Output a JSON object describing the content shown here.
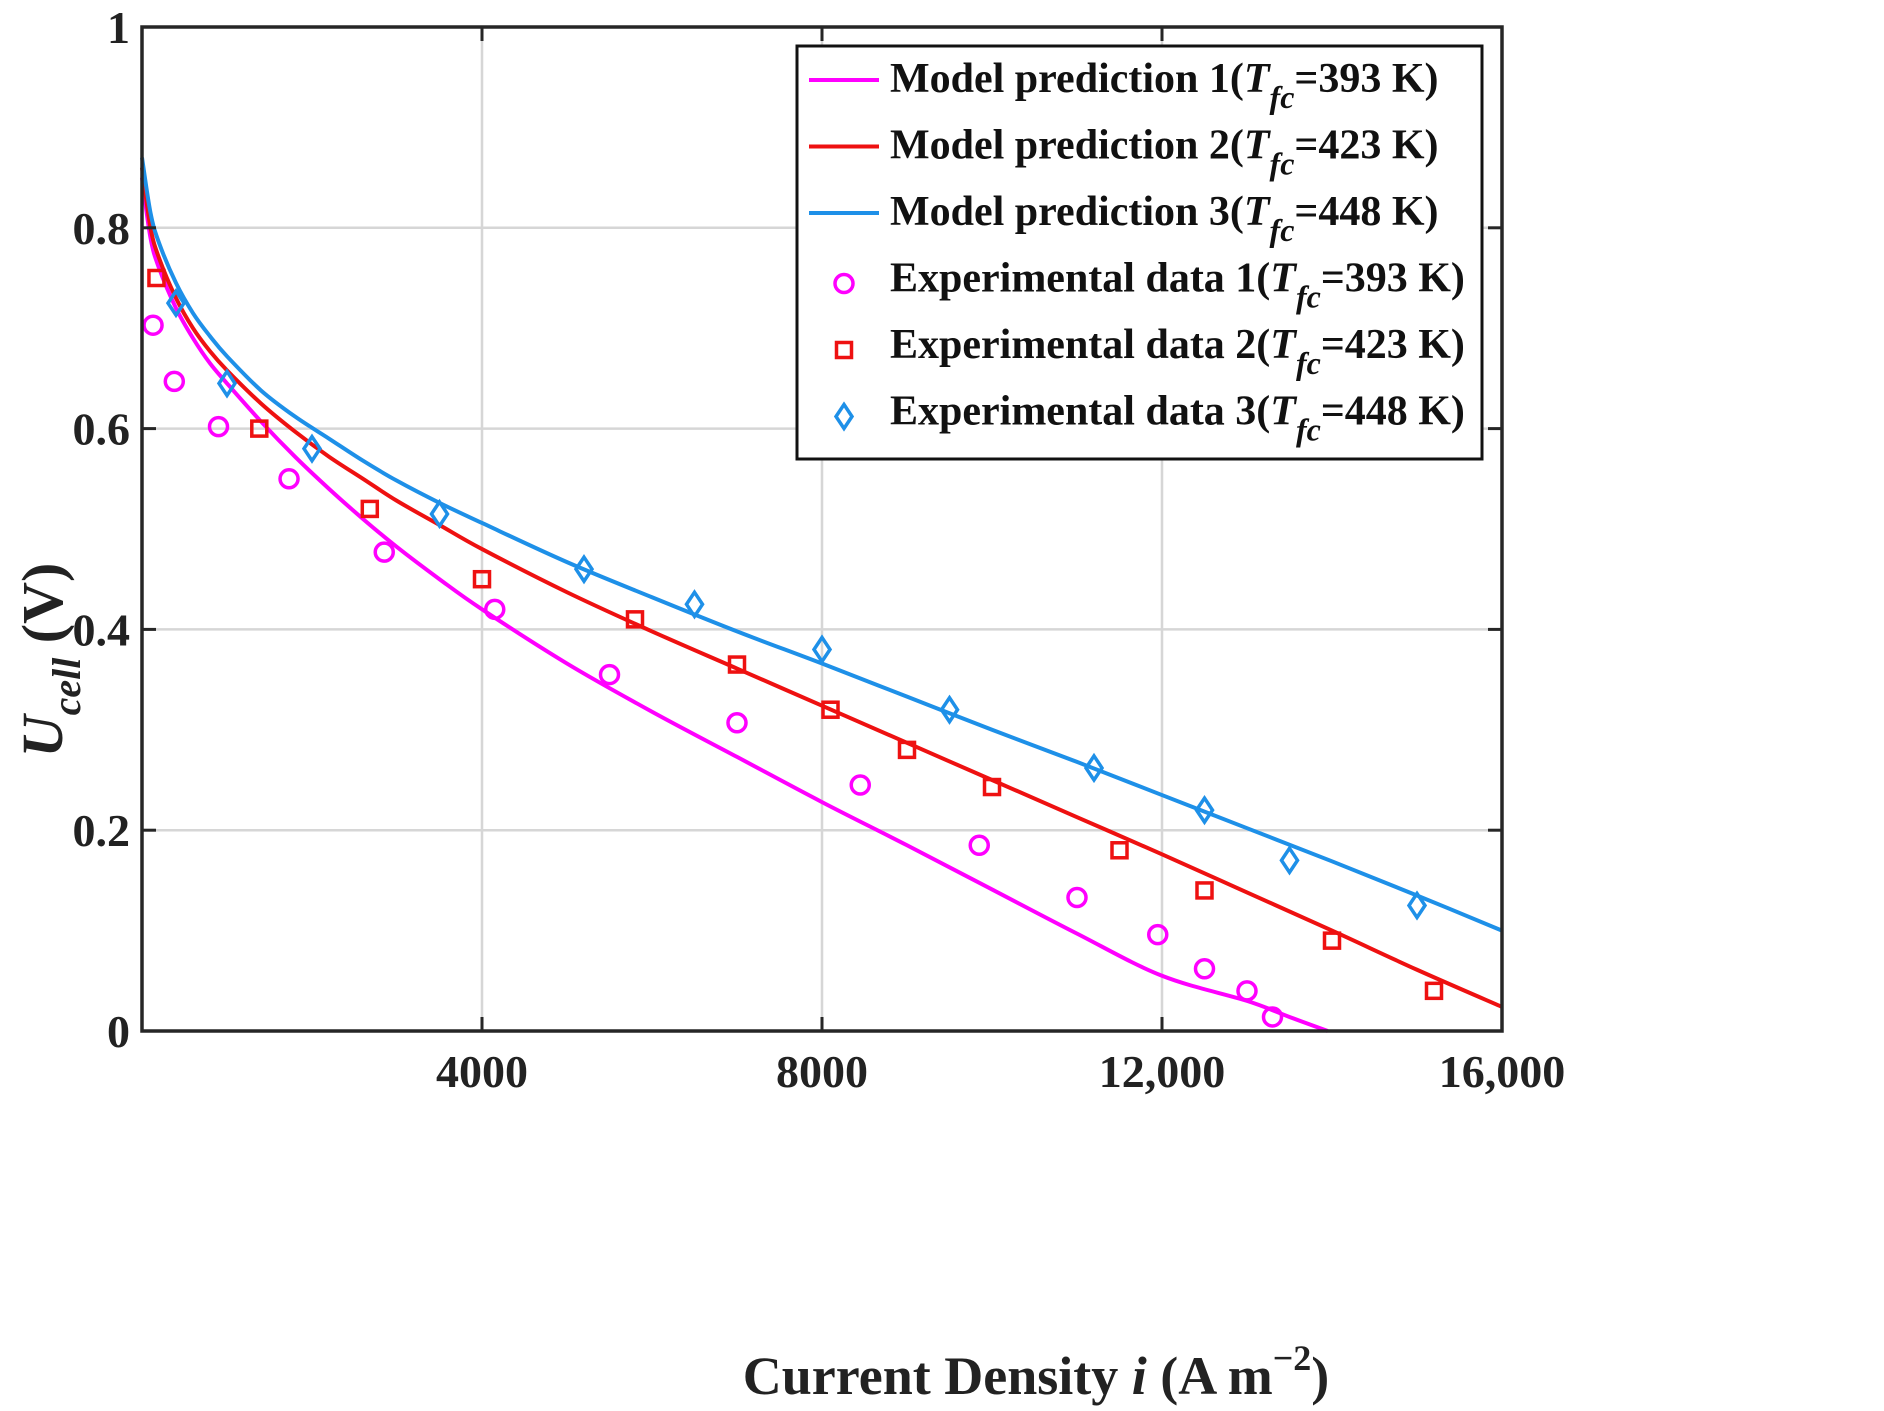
{
  "chart_data": {
    "type": "line",
    "title": "",
    "xlabel": {
      "main": "Current Density ",
      "var": "i",
      "units": " (A m",
      "exp": "−2",
      "close": ")"
    },
    "ylabel": {
      "var": "U",
      "sub": "cell",
      "units": " (V)"
    },
    "xlim": [
      0,
      16000
    ],
    "ylim": [
      0,
      1
    ],
    "xticks": [
      {
        "value": 4000,
        "label": "4000"
      },
      {
        "value": 8000,
        "label": "8000"
      },
      {
        "value": 12000,
        "label": "12,000"
      },
      {
        "value": 16000,
        "label": "16,000"
      }
    ],
    "yticks": [
      {
        "value": 0,
        "label": "0"
      },
      {
        "value": 0.2,
        "label": "0.2"
      },
      {
        "value": 0.4,
        "label": "0.4"
      },
      {
        "value": 0.6,
        "label": "0.6"
      },
      {
        "value": 0.8,
        "label": "0.8"
      },
      {
        "value": 1,
        "label": "1"
      }
    ],
    "grid": true,
    "legend_position": "top-right",
    "series": [
      {
        "kind": "line",
        "name": "Model prediction 1",
        "legend": {
          "prefix": "Model prediction 1(",
          "var": "T",
          "sub": "fc",
          "suffix": "=393 K)"
        },
        "color": "#ff00ff",
        "x": [
          0,
          100,
          200,
          400,
          600,
          800,
          1000,
          1400,
          1800,
          2200,
          2600,
          3000,
          3500,
          4000,
          5000,
          6000,
          7000,
          8000,
          9000,
          10000,
          11000,
          12000,
          13000,
          13500,
          13950
        ],
        "y": [
          0.85,
          0.79,
          0.76,
          0.72,
          0.69,
          0.665,
          0.645,
          0.607,
          0.572,
          0.54,
          0.51,
          0.482,
          0.45,
          0.42,
          0.366,
          0.318,
          0.273,
          0.228,
          0.185,
          0.141,
          0.097,
          0.055,
          0.03,
          0.014,
          0.0
        ]
      },
      {
        "kind": "line",
        "name": "Model prediction 2",
        "legend": {
          "prefix": "Model prediction 2(",
          "var": "T",
          "sub": "fc",
          "suffix": "=423 K)"
        },
        "color": "#ee1111",
        "x": [
          0,
          100,
          200,
          400,
          600,
          800,
          1000,
          1400,
          1800,
          2200,
          2600,
          3000,
          3500,
          4000,
          5000,
          6000,
          7000,
          8000,
          9000,
          10000,
          11000,
          12000,
          13000,
          14000,
          15000,
          16000
        ],
        "y": [
          0.86,
          0.8,
          0.77,
          0.73,
          0.7,
          0.677,
          0.658,
          0.625,
          0.597,
          0.572,
          0.55,
          0.528,
          0.504,
          0.48,
          0.437,
          0.398,
          0.361,
          0.324,
          0.287,
          0.25,
          0.213,
          0.176,
          0.138,
          0.1,
          0.061,
          0.024
        ]
      },
      {
        "kind": "line",
        "name": "Model prediction 3",
        "legend": {
          "prefix": "Model prediction 3(",
          "var": "T",
          "sub": "fc",
          "suffix": "=448 K)"
        },
        "color": "#1e90e8",
        "x": [
          0,
          100,
          200,
          400,
          600,
          800,
          1000,
          1400,
          1800,
          2200,
          2600,
          3000,
          3500,
          4000,
          5000,
          6000,
          7000,
          8000,
          9000,
          10000,
          11000,
          12000,
          13000,
          14000,
          15000,
          16000
        ],
        "y": [
          0.87,
          0.815,
          0.785,
          0.745,
          0.715,
          0.692,
          0.672,
          0.638,
          0.612,
          0.59,
          0.568,
          0.548,
          0.526,
          0.506,
          0.467,
          0.432,
          0.398,
          0.366,
          0.333,
          0.3,
          0.268,
          0.235,
          0.202,
          0.169,
          0.135,
          0.1
        ]
      },
      {
        "kind": "scatter",
        "marker": "circle",
        "name": "Experimental data 1",
        "legend": {
          "prefix": "Experimental data  1(",
          "var": "T",
          "sub": "fc",
          "suffix": "=393 K)"
        },
        "color": "#ff00ff",
        "x": [
          130,
          380,
          900,
          1730,
          2850,
          4150,
          5500,
          7000,
          8450,
          9850,
          11000,
          11950,
          12500,
          13000,
          13300
        ],
        "y": [
          0.703,
          0.647,
          0.602,
          0.55,
          0.477,
          0.42,
          0.355,
          0.307,
          0.245,
          0.185,
          0.133,
          0.096,
          0.062,
          0.04,
          0.014
        ]
      },
      {
        "kind": "scatter",
        "marker": "square",
        "name": "Experimental data 2",
        "legend": {
          "prefix": "Experimental data  2(",
          "var": "T",
          "sub": "fc",
          "suffix": "=423 K)"
        },
        "color": "#ee1111",
        "x": [
          170,
          1380,
          2680,
          4000,
          5800,
          7000,
          8100,
          9000,
          10000,
          11500,
          12500,
          14000,
          15200
        ],
        "y": [
          0.75,
          0.6,
          0.52,
          0.45,
          0.41,
          0.365,
          0.32,
          0.28,
          0.243,
          0.18,
          0.14,
          0.09,
          0.04
        ]
      },
      {
        "kind": "scatter",
        "marker": "diamond",
        "name": "Experimental data 3",
        "legend": {
          "prefix": "Experimental data 3(",
          "var": "T",
          "sub": "fc",
          "suffix": "=448 K)"
        },
        "color": "#1e90e8",
        "x": [
          400,
          1000,
          2000,
          3500,
          5200,
          6500,
          8000,
          9500,
          11200,
          12500,
          13500,
          15000
        ],
        "y": [
          0.725,
          0.645,
          0.58,
          0.515,
          0.46,
          0.425,
          0.38,
          0.32,
          0.262,
          0.22,
          0.17,
          0.125
        ]
      }
    ]
  }
}
